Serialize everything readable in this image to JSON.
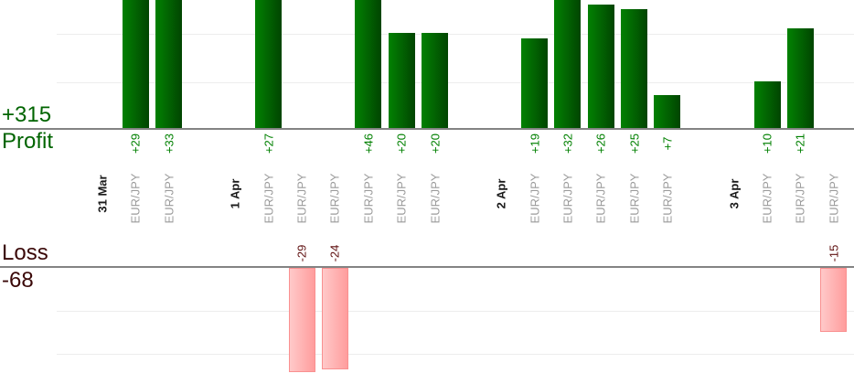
{
  "profit_panel": {
    "total": "+315",
    "title": "Profit"
  },
  "loss_panel": {
    "title": "Loss",
    "total": "-68"
  },
  "colors": {
    "profit_text": "#006400",
    "profit_value_text": "#008000",
    "loss_text": "#3a0808",
    "loss_value_text": "#5f1010",
    "bar_green_light": "#028102",
    "bar_green_dark": "#014501",
    "bar_pink_light": "#ffc9c9",
    "bar_pink_dark": "#ff9d9d",
    "bar_pink_border": "#f99090",
    "date_label": "#1a1a1a",
    "symbol_label": "#9b9b9b",
    "axis_line": "#838383",
    "gridline": "#ededed",
    "background": "#ffffff"
  },
  "chart_data": {
    "type": "bar",
    "orientation": "vertical",
    "description": "Profit and loss per trade grouped by day; profit bars rise above upper axis, loss bars hang below lower axis",
    "legend": "none",
    "grid": "on",
    "panels": [
      {
        "name": "Profit",
        "total": 315,
        "total_label": "+315",
        "axis": {
          "baseline": 0,
          "gridline_step": 10,
          "visible_gridlines": [
            10,
            20
          ],
          "note": "tall bars clipped at top of image"
        }
      },
      {
        "name": "Loss",
        "total": -68,
        "total_label": "-68",
        "axis": {
          "baseline": 0,
          "gridline_step": -10,
          "visible_gridlines": [
            -10,
            -20
          ],
          "note": "tallest loss bar clipped at bottom of plot"
        }
      }
    ],
    "groups": [
      {
        "date": "31 Mar",
        "trades": [
          {
            "symbol": "EUR/JPY",
            "value": 29,
            "label": "+29"
          },
          {
            "symbol": "EUR/JPY",
            "value": 33,
            "label": "+33"
          }
        ]
      },
      {
        "date": "1 Apr",
        "trades": [
          {
            "symbol": "EUR/JPY",
            "value": 27,
            "label": "+27"
          },
          {
            "symbol": "EUR/JPY",
            "value": -29,
            "label": "-29"
          },
          {
            "symbol": "EUR/JPY",
            "value": -24,
            "label": "-24"
          },
          {
            "symbol": "EUR/JPY",
            "value": 46,
            "label": "+46"
          },
          {
            "symbol": "EUR/JPY",
            "value": 20,
            "label": "+20"
          },
          {
            "symbol": "EUR/JPY",
            "value": 20,
            "label": "+20"
          }
        ]
      },
      {
        "date": "2 Apr",
        "trades": [
          {
            "symbol": "EUR/JPY",
            "value": 19,
            "label": "+19"
          },
          {
            "symbol": "EUR/JPY",
            "value": 32,
            "label": "+32"
          },
          {
            "symbol": "EUR/JPY",
            "value": 26,
            "label": "+26"
          },
          {
            "symbol": "EUR/JPY",
            "value": 25,
            "label": "+25"
          },
          {
            "symbol": "EUR/JPY",
            "value": 7,
            "label": "+7"
          }
        ]
      },
      {
        "date": "3 Apr",
        "trades": [
          {
            "symbol": "EUR/JPY",
            "value": 10,
            "label": "+10"
          },
          {
            "symbol": "EUR/JPY",
            "value": 21,
            "label": "+21"
          },
          {
            "symbol": "EUR/JPY",
            "value": -15,
            "label": "-15"
          }
        ]
      }
    ]
  }
}
